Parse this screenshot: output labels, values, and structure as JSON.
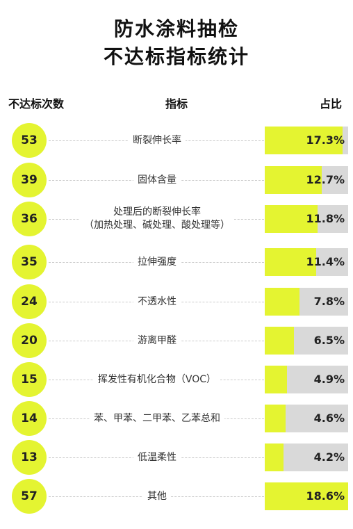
{
  "title": {
    "line1": "防水涂料抽检",
    "line2": "不达标指标统计"
  },
  "headers": {
    "count": "不达标次数",
    "indicator": "指标",
    "share": "占比"
  },
  "colors": {
    "accent": "#e4f431",
    "track": "#d9d9d9"
  },
  "chart_data": {
    "type": "bar",
    "columns": [
      "不达标次数",
      "指标",
      "占比"
    ],
    "rows": [
      {
        "count": "53",
        "indicator": "断裂伸长率",
        "indicator2": "",
        "share": 17.3,
        "share_label": "17.3%"
      },
      {
        "count": "39",
        "indicator": "固体含量",
        "indicator2": "",
        "share": 12.7,
        "share_label": "12.7%"
      },
      {
        "count": "36",
        "indicator": "处理后的断裂伸长率",
        "indicator2": "（加热处理、碱处理、酸处理等）",
        "share": 11.8,
        "share_label": "11.8%"
      },
      {
        "count": "35",
        "indicator": "拉伸强度",
        "indicator2": "",
        "share": 11.4,
        "share_label": "11.4%"
      },
      {
        "count": "24",
        "indicator": "不透水性",
        "indicator2": "",
        "share": 7.8,
        "share_label": "7.8%"
      },
      {
        "count": "20",
        "indicator": "游离甲醛",
        "indicator2": "",
        "share": 6.5,
        "share_label": "6.5%"
      },
      {
        "count": "15",
        "indicator": "挥发性有机化合物（VOC）",
        "indicator2": "",
        "share": 4.9,
        "share_label": "4.9%"
      },
      {
        "count": "14",
        "indicator": "苯、甲苯、二甲苯、乙苯总和",
        "indicator2": "",
        "share": 4.6,
        "share_label": "4.6%"
      },
      {
        "count": "13",
        "indicator": "低温柔性",
        "indicator2": "",
        "share": 4.2,
        "share_label": "4.2%"
      },
      {
        "count": "57",
        "indicator": "其他",
        "indicator2": "",
        "share": 18.6,
        "share_label": "18.6%"
      }
    ],
    "share_range": [
      0,
      18.6
    ]
  }
}
